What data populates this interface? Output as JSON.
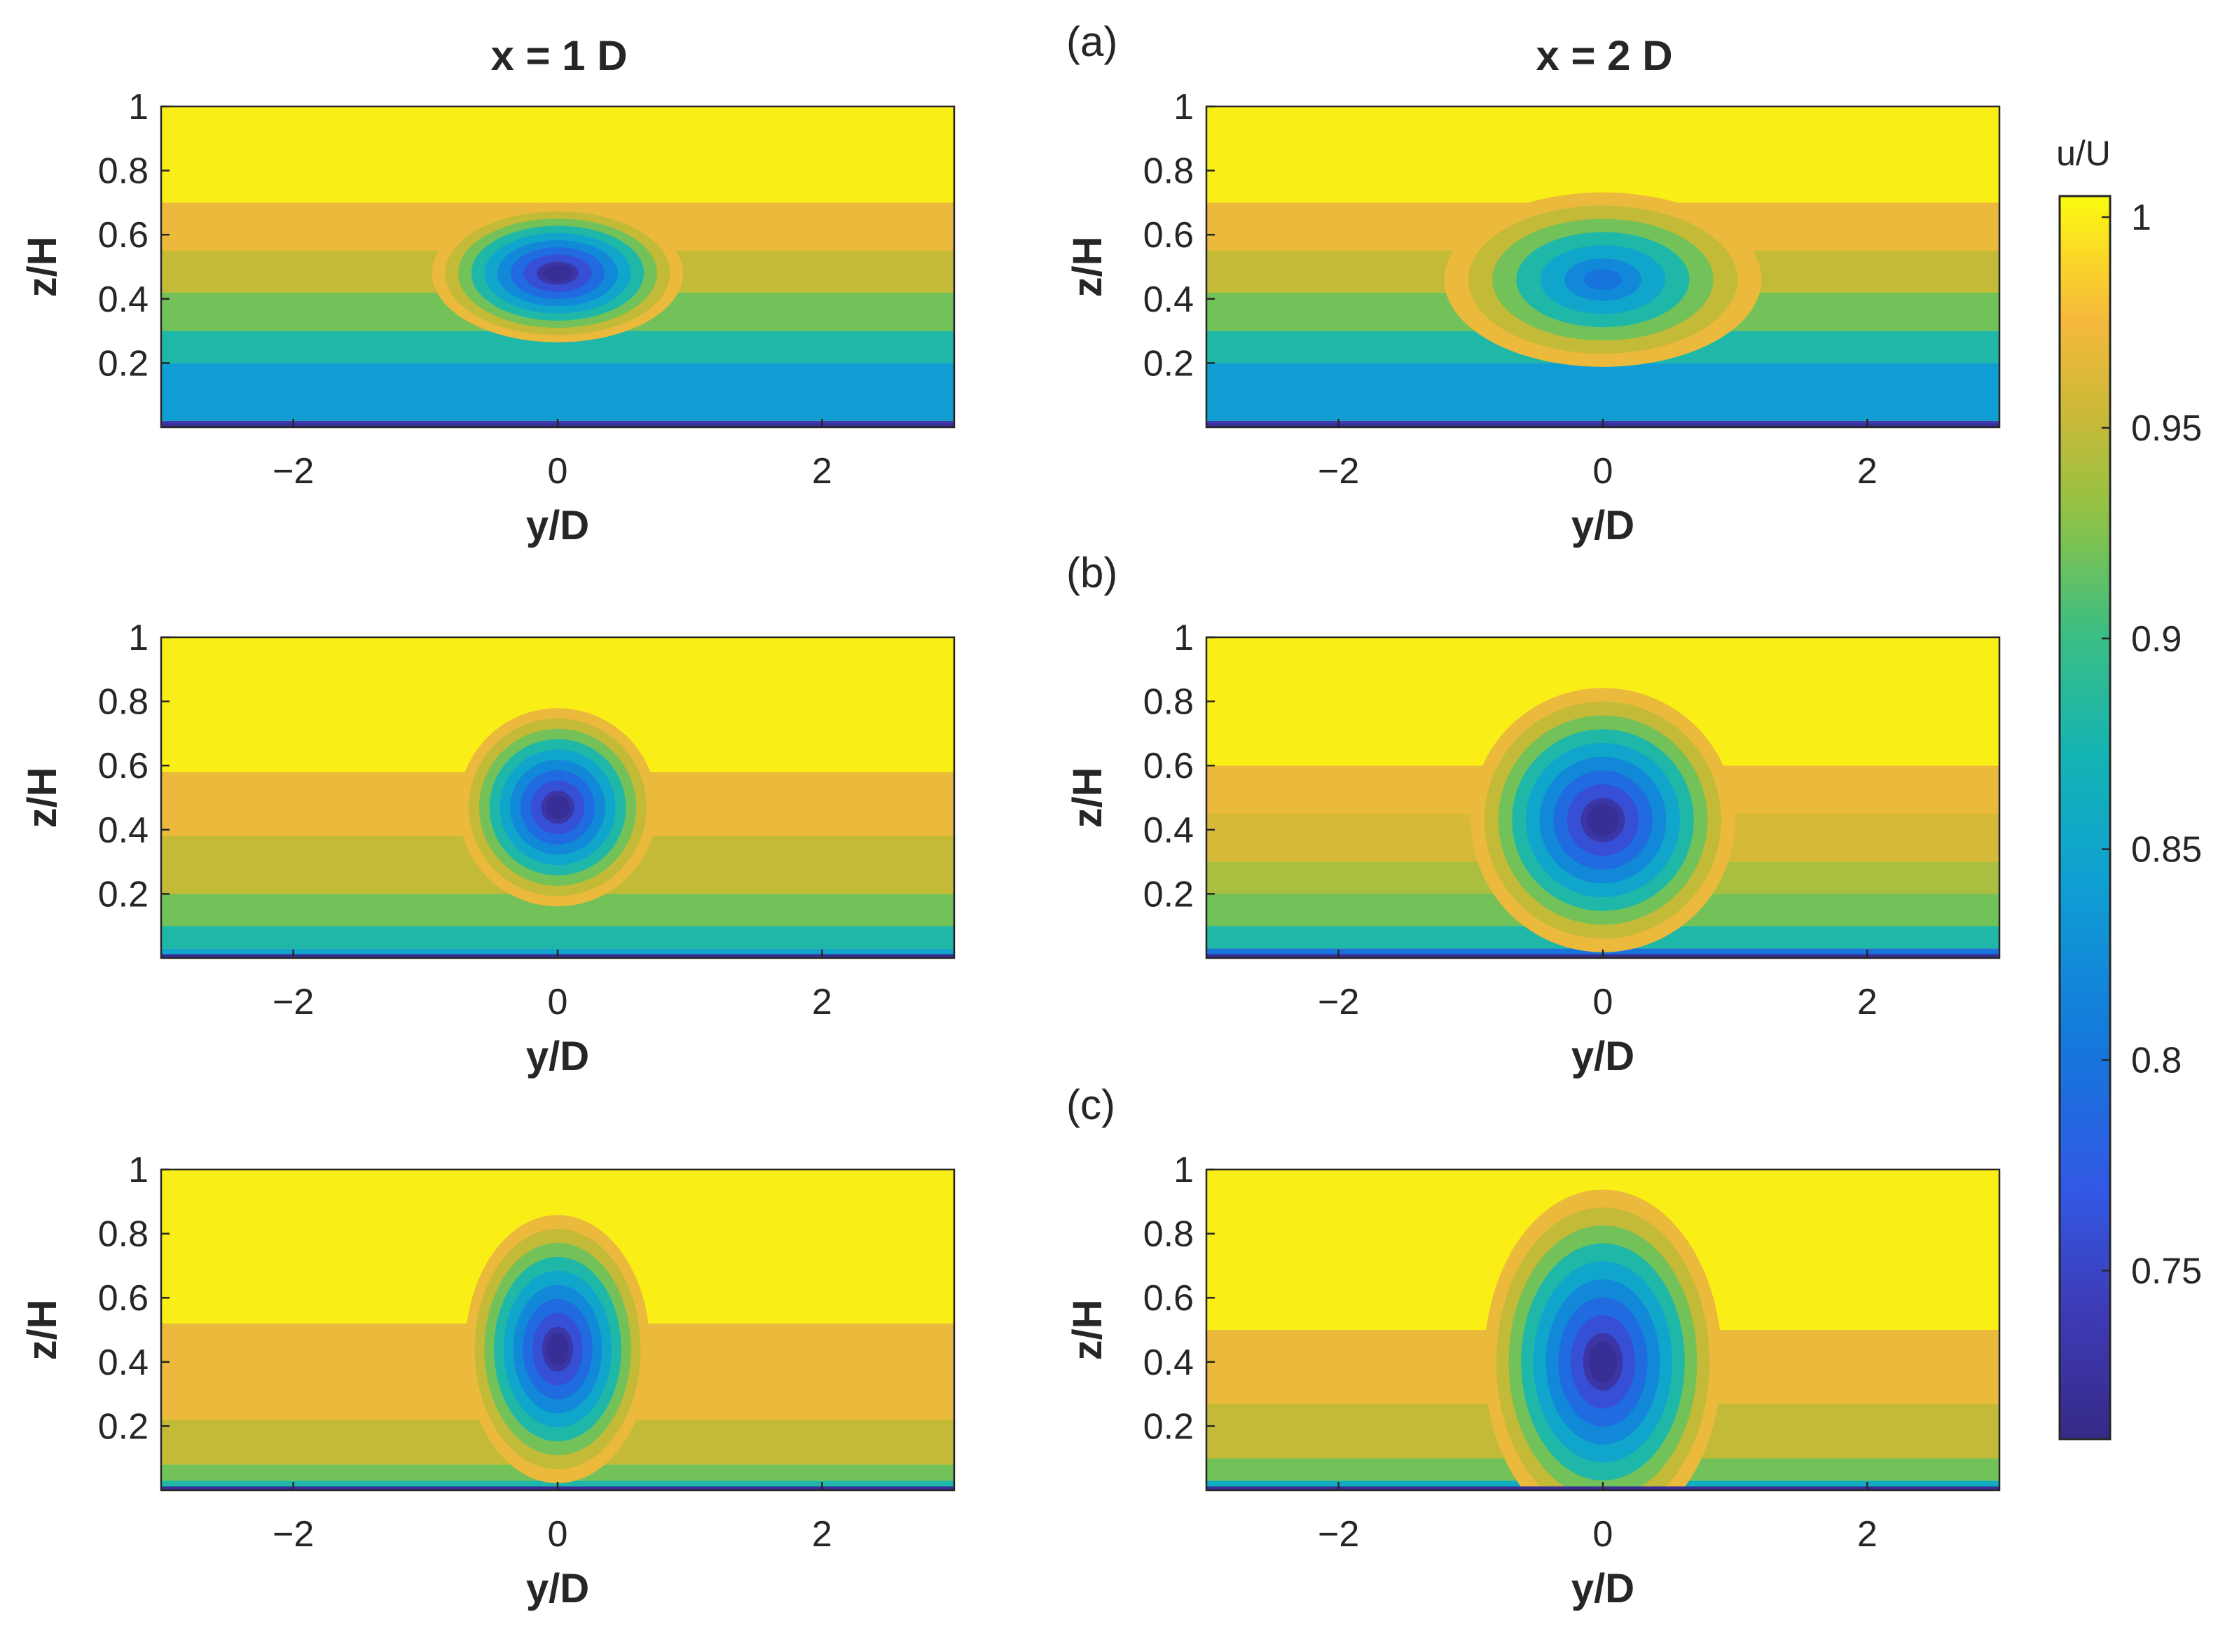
{
  "chart_data": {
    "type": "contour",
    "column_titles": [
      "x = 1 D",
      "x = 2 D"
    ],
    "row_labels": [
      "(a)",
      "(b)",
      "(c)"
    ],
    "xlabel": "y/D",
    "ylabel": "z/H",
    "xlim": [
      -3,
      3
    ],
    "ylim": [
      0,
      1
    ],
    "xticks": [
      -2,
      0,
      2
    ],
    "xtick_labels": [
      "−2",
      "0",
      "2"
    ],
    "yticks": [
      0.2,
      0.4,
      0.6,
      0.8,
      1
    ],
    "ytick_labels": [
      "0.2",
      "0.4",
      "0.6",
      "0.8",
      "1"
    ],
    "colorbar": {
      "title": "u/U",
      "range": [
        0.71,
        1.005
      ],
      "ticks": [
        0.75,
        0.8,
        0.85,
        0.9,
        0.95,
        1
      ],
      "tick_labels": [
        "0.75",
        "0.8",
        "0.85",
        "0.9",
        "0.95",
        "1"
      ],
      "colormap": "parula"
    },
    "panels": [
      {
        "row": "(a)",
        "column": "x = 1 D",
        "wake_center_y": 0,
        "wake_center_z": 0.48,
        "min_u": 0.72,
        "wake_half_width": 0.95,
        "background_levels": [
          {
            "z_max": 0.02,
            "u": 0.74
          },
          {
            "z_max": 0.2,
            "u": 0.84
          },
          {
            "z_max": 0.3,
            "u": 0.88
          },
          {
            "z_max": 0.42,
            "u": 0.92
          },
          {
            "z_max": 0.55,
            "u": 0.95
          },
          {
            "z_max": 0.7,
            "u": 0.97
          },
          {
            "z_max": 1.0,
            "u": 1.0
          }
        ]
      },
      {
        "row": "(a)",
        "column": "x = 2 D",
        "wake_center_y": 0,
        "wake_center_z": 0.46,
        "min_u": 0.8,
        "wake_half_width": 1.2,
        "background_levels": [
          {
            "z_max": 0.02,
            "u": 0.74
          },
          {
            "z_max": 0.2,
            "u": 0.84
          },
          {
            "z_max": 0.3,
            "u": 0.88
          },
          {
            "z_max": 0.42,
            "u": 0.92
          },
          {
            "z_max": 0.55,
            "u": 0.95
          },
          {
            "z_max": 0.7,
            "u": 0.97
          },
          {
            "z_max": 1.0,
            "u": 1.0
          }
        ]
      },
      {
        "row": "(b)",
        "column": "x = 1 D",
        "wake_center_y": 0,
        "wake_center_z": 0.47,
        "min_u": 0.72,
        "wake_half_width": 0.75,
        "background_levels": [
          {
            "z_max": 0.03,
            "u": 0.85
          },
          {
            "z_max": 0.1,
            "u": 0.88
          },
          {
            "z_max": 0.2,
            "u": 0.92
          },
          {
            "z_max": 0.38,
            "u": 0.95
          },
          {
            "z_max": 0.58,
            "u": 0.97
          },
          {
            "z_max": 1.0,
            "u": 1.0
          }
        ]
      },
      {
        "row": "(b)",
        "column": "x = 2 D",
        "wake_center_y": 0,
        "wake_center_z": 0.43,
        "min_u": 0.72,
        "wake_half_width": 1.0,
        "background_levels": [
          {
            "z_max": 0.03,
            "u": 0.8
          },
          {
            "z_max": 0.1,
            "u": 0.88
          },
          {
            "z_max": 0.2,
            "u": 0.92
          },
          {
            "z_max": 0.3,
            "u": 0.94
          },
          {
            "z_max": 0.45,
            "u": 0.96
          },
          {
            "z_max": 0.6,
            "u": 0.97
          },
          {
            "z_max": 1.0,
            "u": 1.0
          }
        ]
      },
      {
        "row": "(c)",
        "column": "x = 1 D",
        "wake_center_y": 0,
        "wake_center_z": 0.44,
        "min_u": 0.72,
        "wake_half_width": 0.7,
        "background_levels": [
          {
            "z_max": 0.03,
            "u": 0.88
          },
          {
            "z_max": 0.08,
            "u": 0.92
          },
          {
            "z_max": 0.22,
            "u": 0.95
          },
          {
            "z_max": 0.52,
            "u": 0.97
          },
          {
            "z_max": 1.0,
            "u": 1.0
          }
        ]
      },
      {
        "row": "(c)",
        "column": "x = 2 D",
        "wake_center_y": 0,
        "wake_center_z": 0.4,
        "min_u": 0.72,
        "wake_half_width": 0.9,
        "background_levels": [
          {
            "z_max": 0.03,
            "u": 0.86
          },
          {
            "z_max": 0.1,
            "u": 0.92
          },
          {
            "z_max": 0.27,
            "u": 0.95
          },
          {
            "z_max": 0.5,
            "u": 0.97
          },
          {
            "z_max": 1.0,
            "u": 1.0
          }
        ]
      }
    ]
  }
}
